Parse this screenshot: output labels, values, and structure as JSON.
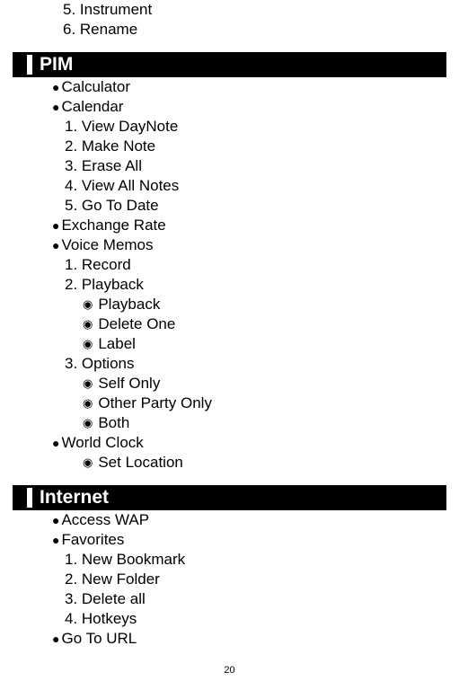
{
  "colors": {
    "bg": "#ffffff",
    "text": "#000000",
    "header_bg": "#000000",
    "header_text": "#ffffff"
  },
  "typography": {
    "body_fontsize": 17,
    "header_fontsize": 21,
    "pagenum_fontsize": 11,
    "font_family": "Arial"
  },
  "top_orphan_items": {
    "i5": "5. Instrument",
    "i6": "6. Rename"
  },
  "sections": {
    "pim": {
      "title": "PIM",
      "items": {
        "calculator": "Calculator",
        "calendar": {
          "label": "Calendar",
          "subs": {
            "s1": "1. View DayNote",
            "s2": "2. Make Note",
            "s3": "3. Erase All",
            "s4": "4. View All Notes",
            "s5": "5. Go To Date"
          }
        },
        "exchange": "Exchange Rate",
        "voice": {
          "label": "Voice Memos",
          "subs": {
            "s1": "1. Record",
            "s2": {
              "label": "2. Playback",
              "opts": {
                "o1": "Playback",
                "o2": "Delete One",
                "o3": "Label"
              }
            },
            "s3": {
              "label": "3. Options",
              "opts": {
                "o1": "Self Only",
                "o2": "Other Party Only",
                "o3": "Both"
              }
            }
          }
        },
        "world": {
          "label": "World Clock",
          "opts": {
            "o1": "Set Location"
          }
        }
      }
    },
    "internet": {
      "title": "Internet",
      "items": {
        "access": "Access WAP",
        "fav": {
          "label": "Favorites",
          "subs": {
            "s1": "1. New Bookmark",
            "s2": "2. New Folder",
            "s3": "3. Delete all",
            "s4": "4. Hotkeys"
          }
        },
        "gotourl": "Go To URL"
      }
    }
  },
  "page_number": "20"
}
